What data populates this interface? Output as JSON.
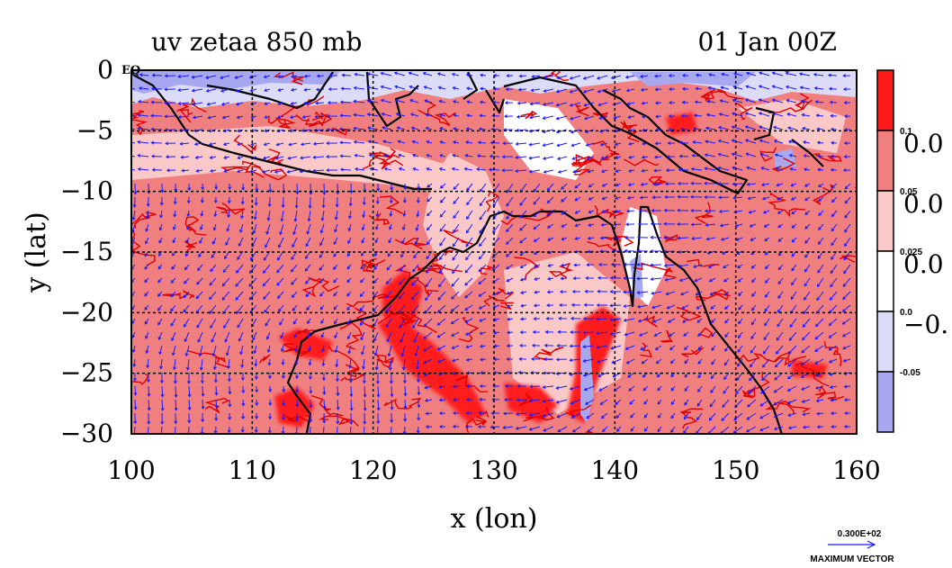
{
  "chart_data": {
    "type": "heatmap",
    "title": "uv zetaa 850 mb",
    "time_label": "01 Jan 00Z",
    "xlabel": "x (lon)",
    "ylabel": "y (lat)",
    "x_ticks": [
      "100",
      "110",
      "120",
      "130",
      "140",
      "150",
      "160"
    ],
    "y_ticks": [
      "0",
      "−5",
      "−10",
      "−15",
      "−20",
      "−25",
      "−30"
    ],
    "x_tick_values": [
      100,
      110,
      120,
      130,
      140,
      150,
      160
    ],
    "y_tick_values": [
      0,
      -5,
      -10,
      -15,
      -20,
      -25,
      -30
    ],
    "xlim": [
      100,
      160
    ],
    "ylim": [
      -30,
      0
    ],
    "grid": true,
    "top_left_marker": "EQ",
    "colorbar": {
      "levels": [
        "0.1",
        "0.05",
        "0.025",
        "0.0",
        "-0.05"
      ],
      "side_labels": [
        "0.0",
        "0.0",
        "0.0",
        "−0."
      ],
      "colors": [
        "#ff1a1a",
        "#f08080",
        "#fbc8c8",
        "#ffffff",
        "#dcdcf8",
        "#a8a8f0"
      ]
    },
    "vector_legend": {
      "value": "0.300E+02",
      "label": "MAXIMUM VECTOR"
    },
    "colors": {
      "coast": "#000000",
      "contour": "#e00000",
      "vector": "#1a1aff",
      "grid": "#000000"
    }
  }
}
